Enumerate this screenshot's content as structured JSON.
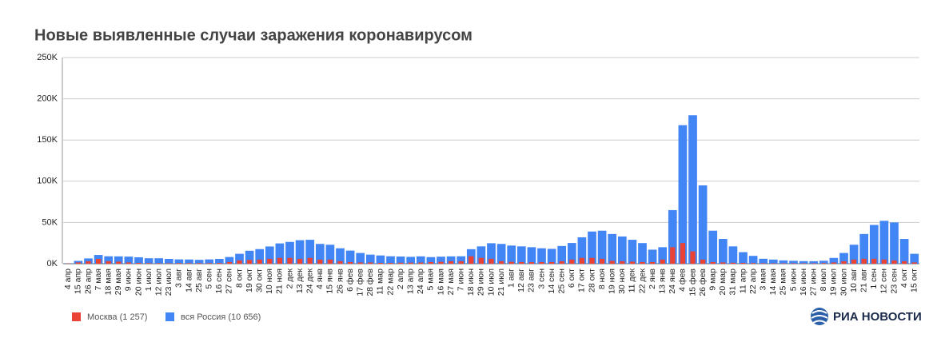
{
  "chart_data": {
    "type": "bar",
    "title": "Новые выявленные случаи заражения коронавирусом",
    "categories": [
      "4 апр",
      "15 апр",
      "26 апр",
      "7 мая",
      "18 мая",
      "29 мая",
      "9 июн",
      "20 июн",
      "1 июл",
      "12 июл",
      "23 июл",
      "3 авг",
      "14 авг",
      "25 авг",
      "5 сен",
      "16 сен",
      "27 сен",
      "8 окт",
      "19 окт",
      "30 окт",
      "10 ноя",
      "21 ноя",
      "2 дек",
      "13 дек",
      "24 дек",
      "4 янв",
      "15 янв",
      "26 янв",
      "6 фев",
      "17 фев",
      "28 фев",
      "11 мар",
      "22 мар",
      "2 апр",
      "13 апр",
      "24 апр",
      "5 мая",
      "16 мая",
      "27 мая",
      "7 июн",
      "18 июн",
      "29 июн",
      "10 июл",
      "21 июл",
      "1 авг",
      "12 авг",
      "23 авг",
      "3 сен",
      "14 сен",
      "25 сен",
      "6 окт",
      "17 окт",
      "28 окт",
      "8 ноя",
      "19 ноя",
      "30 ноя",
      "11 дек",
      "22 дек",
      "2 янв",
      "13 янв",
      "24 янв",
      "4 фев",
      "15 фев",
      "26 фев",
      "9 мар",
      "20 мар",
      "31 мар",
      "11 апр",
      "22 апр",
      "3 мая",
      "14 мая",
      "25 мая",
      "5 июн",
      "16 июн",
      "27 июн",
      "8 июл",
      "19 июл",
      "30 июл",
      "10 авг",
      "21 авг",
      "1 сен",
      "12 сен",
      "23 сен",
      "4 окт",
      "15 окт"
    ],
    "series": [
      {
        "name": "Москва (1 257)",
        "color": "#ea4335",
        "values": [
          400,
          1500,
          3000,
          5800,
          3000,
          2500,
          1500,
          1000,
          700,
          600,
          600,
          700,
          700,
          700,
          700,
          900,
          2000,
          4000,
          4500,
          5000,
          6000,
          7000,
          7000,
          6000,
          7000,
          5000,
          5000,
          3000,
          2000,
          1500,
          1500,
          1000,
          1000,
          1200,
          1300,
          1400,
          2000,
          2300,
          3000,
          3000,
          9000,
          7000,
          6000,
          3000,
          2300,
          2000,
          1800,
          2000,
          2000,
          3000,
          5000,
          7000,
          7000,
          6000,
          3500,
          3000,
          2500,
          2000,
          2000,
          5000,
          20000,
          25000,
          15000,
          5000,
          2000,
          1500,
          1200,
          1000,
          800,
          600,
          500,
          500,
          500,
          500,
          500,
          700,
          1500,
          3000,
          5000,
          6000,
          6000,
          5000,
          4000,
          3000,
          1500
        ]
      },
      {
        "name": "вся Россия (10 656)",
        "color": "#4285f4",
        "values": [
          600,
          3400,
          6400,
          10600,
          9000,
          8900,
          8600,
          7800,
          6600,
          6600,
          5800,
          5200,
          5100,
          4700,
          5200,
          5800,
          8100,
          12000,
          15700,
          17700,
          20900,
          24600,
          26400,
          28500,
          29000,
          24000,
          23000,
          18700,
          15900,
          13000,
          11000,
          10000,
          9000,
          8700,
          8300,
          8900,
          8000,
          8500,
          8900,
          9000,
          17600,
          21000,
          24800,
          24000,
          22000,
          21000,
          20000,
          18700,
          18000,
          21500,
          25100,
          32000,
          39000,
          40000,
          36000,
          33000,
          29000,
          25000,
          17000,
          20000,
          65000,
          168000,
          180000,
          95000,
          40000,
          30000,
          21000,
          14000,
          9500,
          6000,
          5000,
          4000,
          3500,
          3100,
          3000,
          3600,
          7000,
          13000,
          23000,
          36000,
          47000,
          52000,
          50000,
          30000,
          12000
        ]
      }
    ],
    "ylim": [
      0,
      250000
    ],
    "yticks": [
      {
        "value": 0,
        "label": "0K"
      },
      {
        "value": 50000,
        "label": "50K"
      },
      {
        "value": 100000,
        "label": "100K"
      },
      {
        "value": 150000,
        "label": "150K"
      },
      {
        "value": 200000,
        "label": "200K"
      },
      {
        "value": 250000,
        "label": "250K"
      }
    ],
    "grid": true,
    "legend": "bottom-left"
  },
  "logo": "РИА НОВОСТИ"
}
